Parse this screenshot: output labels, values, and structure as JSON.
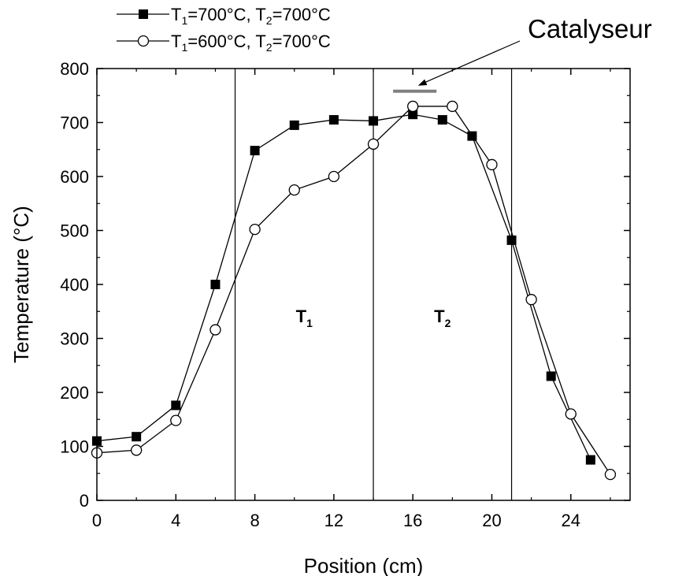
{
  "chart_data": {
    "type": "line",
    "xlabel": "Position (cm)",
    "ylabel": "Temperature (°C)",
    "xlim": [
      0,
      27
    ],
    "ylim": [
      0,
      800
    ],
    "x_ticks": [
      0,
      4,
      8,
      12,
      16,
      20,
      24
    ],
    "y_ticks": [
      0,
      100,
      200,
      300,
      400,
      500,
      600,
      700,
      800
    ],
    "grid": false,
    "legend_position": "top-left, above plot",
    "series": [
      {
        "name": "T1=700°C, T2=700°C",
        "name_parts": [
          {
            "text": "T",
            "sub": false
          },
          {
            "text": "1",
            "sub": true
          },
          {
            "text": "=700°C, T",
            "sub": false
          },
          {
            "text": "2",
            "sub": true
          },
          {
            "text": "=700°C",
            "sub": false
          }
        ],
        "marker": "filled-square",
        "color": "#000000",
        "x": [
          0,
          2,
          4,
          6,
          8,
          10,
          12,
          14,
          16,
          17.5,
          19,
          21,
          23,
          25
        ],
        "y": [
          110,
          118,
          176,
          400,
          648,
          695,
          705,
          703,
          715,
          705,
          675,
          482,
          230,
          75
        ]
      },
      {
        "name": "T1=600°C, T2=700°C",
        "name_parts": [
          {
            "text": "T",
            "sub": false
          },
          {
            "text": "1",
            "sub": true
          },
          {
            "text": "=600°C, T",
            "sub": false
          },
          {
            "text": "2",
            "sub": true
          },
          {
            "text": "=700°C",
            "sub": false
          }
        ],
        "marker": "open-circle",
        "color": "#000000",
        "x": [
          0,
          2,
          4,
          6,
          8,
          10,
          12,
          14,
          16,
          18,
          20,
          22,
          24,
          26
        ],
        "y": [
          88,
          93,
          148,
          316,
          502,
          575,
          600,
          660,
          730,
          730,
          622,
          372,
          160,
          48
        ]
      }
    ],
    "vertical_lines": [
      7,
      14,
      21
    ],
    "region_labels": [
      {
        "main": "T",
        "sub": "1",
        "x": 10.5,
        "y": 330
      },
      {
        "main": "T",
        "sub": "2",
        "x": 17.5,
        "y": 330
      }
    ],
    "catalyst": {
      "label": "Catalyseur",
      "segment_x": [
        15,
        17.2
      ],
      "segment_y": 758,
      "color": "#808080"
    }
  }
}
